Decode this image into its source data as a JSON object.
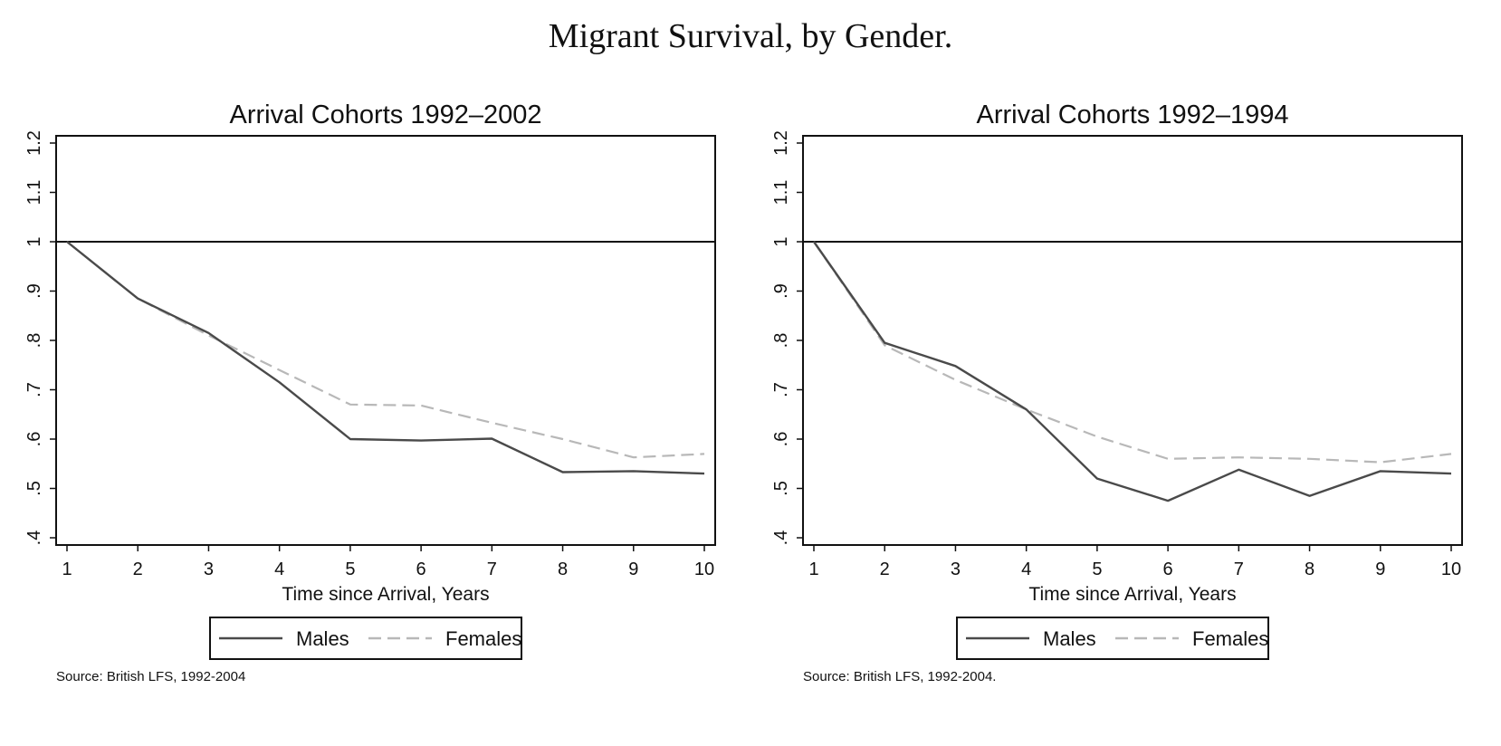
{
  "title": "Migrant Survival, by Gender.",
  "chart_data": [
    {
      "type": "line",
      "title": "Arrival Cohorts 1992–2002",
      "xlabel": "Time since Arrival, Years",
      "ylabel": "",
      "x": [
        1,
        2,
        3,
        4,
        5,
        6,
        7,
        8,
        9,
        10
      ],
      "xlim": [
        1,
        10
      ],
      "ylim": [
        0.4,
        1.2
      ],
      "yticks": [
        0.4,
        0.5,
        0.6,
        0.7,
        0.8,
        0.9,
        1.0,
        1.1,
        1.2
      ],
      "ytick_labels": [
        ".4",
        ".5",
        ".6",
        ".7",
        ".8",
        ".9",
        "1",
        "1.1",
        "1.2"
      ],
      "reference_line": 1,
      "grid": false,
      "legend": "bottom",
      "series": [
        {
          "name": "Males",
          "style": "solid",
          "color": "#4a4a4a",
          "values": [
            1.0,
            0.885,
            0.815,
            0.715,
            0.6,
            0.597,
            0.601,
            0.533,
            0.535,
            0.53
          ]
        },
        {
          "name": "Females",
          "style": "dashed",
          "color": "#b8b8b8",
          "values": [
            1.0,
            0.885,
            0.81,
            0.74,
            0.67,
            0.668,
            0.633,
            0.6,
            0.563,
            0.57
          ]
        }
      ],
      "source": "Source: British LFS, 1992-2004"
    },
    {
      "type": "line",
      "title": "Arrival Cohorts 1992–1994",
      "xlabel": "Time since Arrival, Years",
      "ylabel": "",
      "x": [
        1,
        2,
        3,
        4,
        5,
        6,
        7,
        8,
        9,
        10
      ],
      "xlim": [
        1,
        10
      ],
      "ylim": [
        0.4,
        1.2
      ],
      "yticks": [
        0.4,
        0.5,
        0.6,
        0.7,
        0.8,
        0.9,
        1.0,
        1.1,
        1.2
      ],
      "ytick_labels": [
        ".4",
        ".5",
        ".6",
        ".7",
        ".8",
        ".9",
        "1",
        "1.1",
        "1.2"
      ],
      "reference_line": 1,
      "grid": false,
      "legend": "bottom",
      "series": [
        {
          "name": "Males",
          "style": "solid",
          "color": "#4a4a4a",
          "values": [
            1.0,
            0.795,
            0.748,
            0.66,
            0.52,
            0.475,
            0.538,
            0.485,
            0.535,
            0.53
          ]
        },
        {
          "name": "Females",
          "style": "dashed",
          "color": "#b8b8b8",
          "values": [
            1.0,
            0.79,
            0.72,
            0.66,
            0.605,
            0.56,
            0.563,
            0.56,
            0.553,
            0.57
          ]
        }
      ],
      "source": "Source: British LFS, 1992-2004."
    }
  ]
}
